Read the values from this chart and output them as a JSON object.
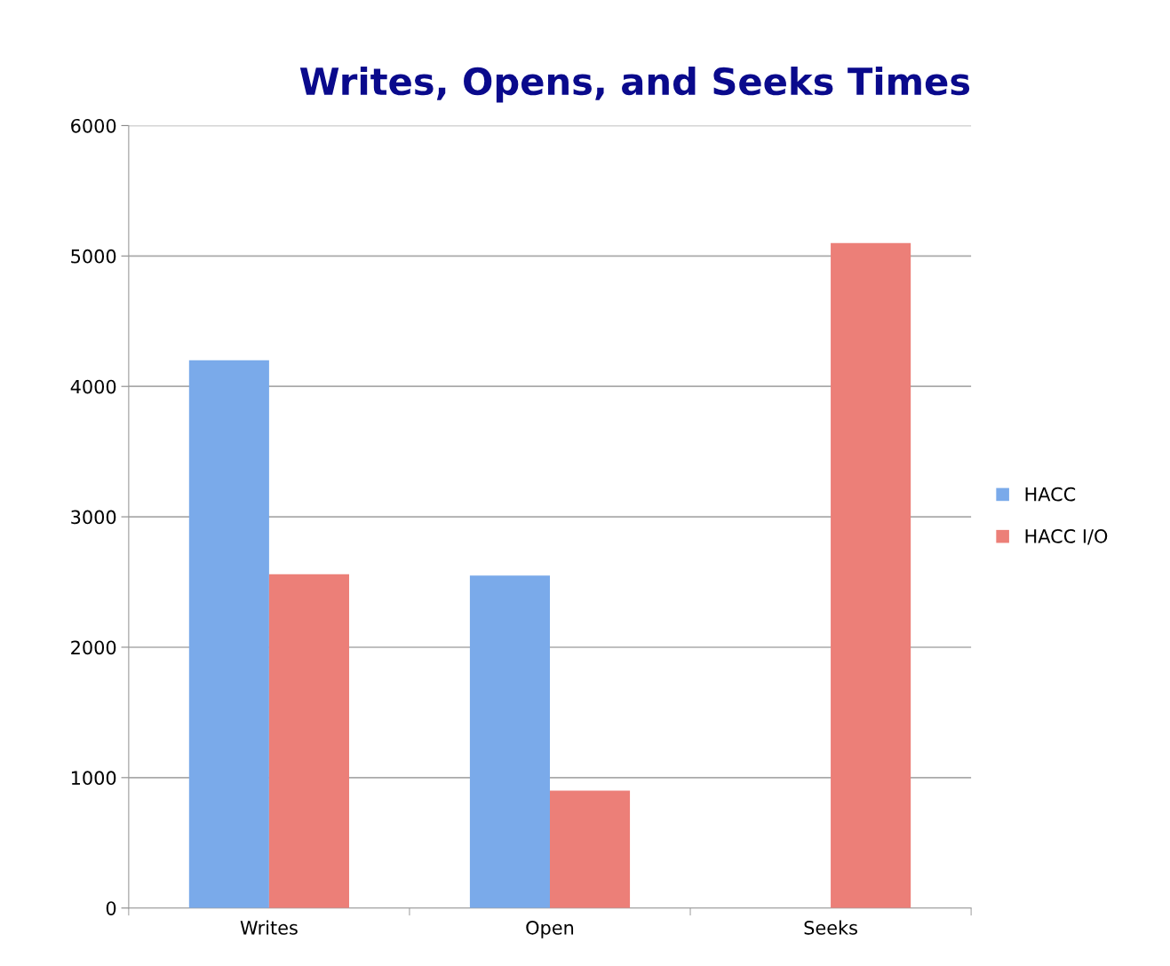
{
  "chart_data": {
    "type": "bar",
    "title": "Writes, Opens, and Seeks Times",
    "categories": [
      "Writes",
      "Open",
      "Seeks"
    ],
    "series": [
      {
        "name": "HACC",
        "color": "#7aaaea",
        "values": [
          4200,
          2550,
          null
        ]
      },
      {
        "name": "HACC I/O",
        "color": "#ec7f78",
        "values": [
          2560,
          900,
          5100
        ]
      }
    ],
    "ylim": [
      0,
      6000
    ],
    "yticks": [
      0,
      1000,
      2000,
      3000,
      4000,
      5000,
      6000
    ],
    "grid": "y",
    "legend": "right"
  }
}
